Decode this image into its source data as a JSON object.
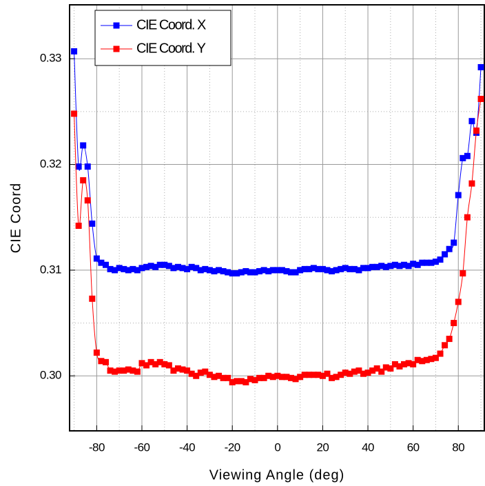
{
  "chart_data": {
    "type": "line",
    "x_label": "Viewing Angle (deg)",
    "y_label": "CIE Coord",
    "x": [
      -90,
      -88,
      -86,
      -84,
      -82,
      -80,
      -78,
      -76,
      -74,
      -72,
      -70,
      -68,
      -66,
      -64,
      -62,
      -60,
      -58,
      -56,
      -54,
      -52,
      -50,
      -48,
      -46,
      -44,
      -42,
      -40,
      -38,
      -36,
      -34,
      -32,
      -30,
      -28,
      -26,
      -24,
      -22,
      -20,
      -18,
      -16,
      -14,
      -12,
      -10,
      -8,
      -6,
      -4,
      -2,
      0,
      2,
      4,
      6,
      8,
      10,
      12,
      14,
      16,
      18,
      20,
      22,
      24,
      26,
      28,
      30,
      32,
      34,
      36,
      38,
      40,
      42,
      44,
      46,
      48,
      50,
      52,
      54,
      56,
      58,
      60,
      62,
      64,
      66,
      68,
      70,
      72,
      74,
      76,
      78,
      80,
      82,
      84,
      86,
      88,
      90
    ],
    "series": [
      {
        "name": "CIE Coord. X",
        "color": "#0000ff",
        "values": [
          0.3307,
          0.3198,
          0.3218,
          0.3198,
          0.3144,
          0.3111,
          0.3107,
          0.3105,
          0.3101,
          0.31,
          0.3102,
          0.3101,
          0.31,
          0.3101,
          0.31,
          0.3102,
          0.3103,
          0.3104,
          0.3103,
          0.3105,
          0.3105,
          0.3104,
          0.3102,
          0.3103,
          0.3102,
          0.3101,
          0.3103,
          0.3102,
          0.31,
          0.3101,
          0.31,
          0.3099,
          0.31,
          0.3099,
          0.3098,
          0.3097,
          0.3097,
          0.3098,
          0.3099,
          0.3098,
          0.3098,
          0.3099,
          0.31,
          0.3099,
          0.31,
          0.31,
          0.31,
          0.3099,
          0.3098,
          0.3098,
          0.31,
          0.3101,
          0.3101,
          0.3102,
          0.3101,
          0.3101,
          0.31,
          0.3099,
          0.31,
          0.3101,
          0.3102,
          0.3101,
          0.3101,
          0.31,
          0.3102,
          0.3102,
          0.3103,
          0.3103,
          0.3104,
          0.3103,
          0.3104,
          0.3105,
          0.3104,
          0.3105,
          0.3104,
          0.3106,
          0.3105,
          0.3107,
          0.3107,
          0.3107,
          0.3108,
          0.311,
          0.3115,
          0.312,
          0.3126,
          0.3171,
          0.3206,
          0.3208,
          0.3241,
          0.323,
          0.3292
        ]
      },
      {
        "name": "CIE Coord. Y",
        "color": "#ff0000",
        "values": [
          0.3248,
          0.3142,
          0.3185,
          0.3166,
          0.3073,
          0.3022,
          0.3014,
          0.3013,
          0.3005,
          0.3004,
          0.3005,
          0.3005,
          0.3006,
          0.3005,
          0.3004,
          0.3012,
          0.301,
          0.3013,
          0.3011,
          0.3013,
          0.3011,
          0.301,
          0.3005,
          0.3007,
          0.3006,
          0.3005,
          0.3002,
          0.3,
          0.3003,
          0.3004,
          0.3001,
          0.2999,
          0.3,
          0.2998,
          0.2998,
          0.2994,
          0.2995,
          0.2995,
          0.2994,
          0.2997,
          0.2996,
          0.2998,
          0.2998,
          0.3,
          0.2999,
          0.3,
          0.2999,
          0.2999,
          0.2998,
          0.2997,
          0.2999,
          0.3001,
          0.3001,
          0.3001,
          0.3001,
          0.3,
          0.3002,
          0.2998,
          0.2999,
          0.3001,
          0.3003,
          0.3002,
          0.3004,
          0.3005,
          0.3002,
          0.3003,
          0.3005,
          0.3007,
          0.3004,
          0.3008,
          0.3007,
          0.3011,
          0.3009,
          0.3011,
          0.3012,
          0.3011,
          0.3015,
          0.3014,
          0.3015,
          0.3016,
          0.3017,
          0.3021,
          0.3029,
          0.3035,
          0.305,
          0.307,
          0.3097,
          0.315,
          0.3182,
          0.3232,
          0.3262
        ]
      }
    ],
    "xlim": [
      -92,
      91.5
    ],
    "ylim": [
      0.2948,
      0.3351
    ],
    "xticks": [
      -80,
      -60,
      -40,
      -20,
      0,
      20,
      40,
      60,
      80
    ],
    "yticks": [
      {
        "value": 0.3,
        "label": "0.30"
      },
      0.31,
      0.32,
      0.33
    ],
    "x_minor_grid": [
      -90,
      -70,
      -50,
      -30,
      -10,
      10,
      30,
      50,
      70,
      90
    ],
    "y_minor_grid": [
      0.305,
      0.315,
      0.325
    ],
    "grid": true,
    "legend": "upper left"
  }
}
